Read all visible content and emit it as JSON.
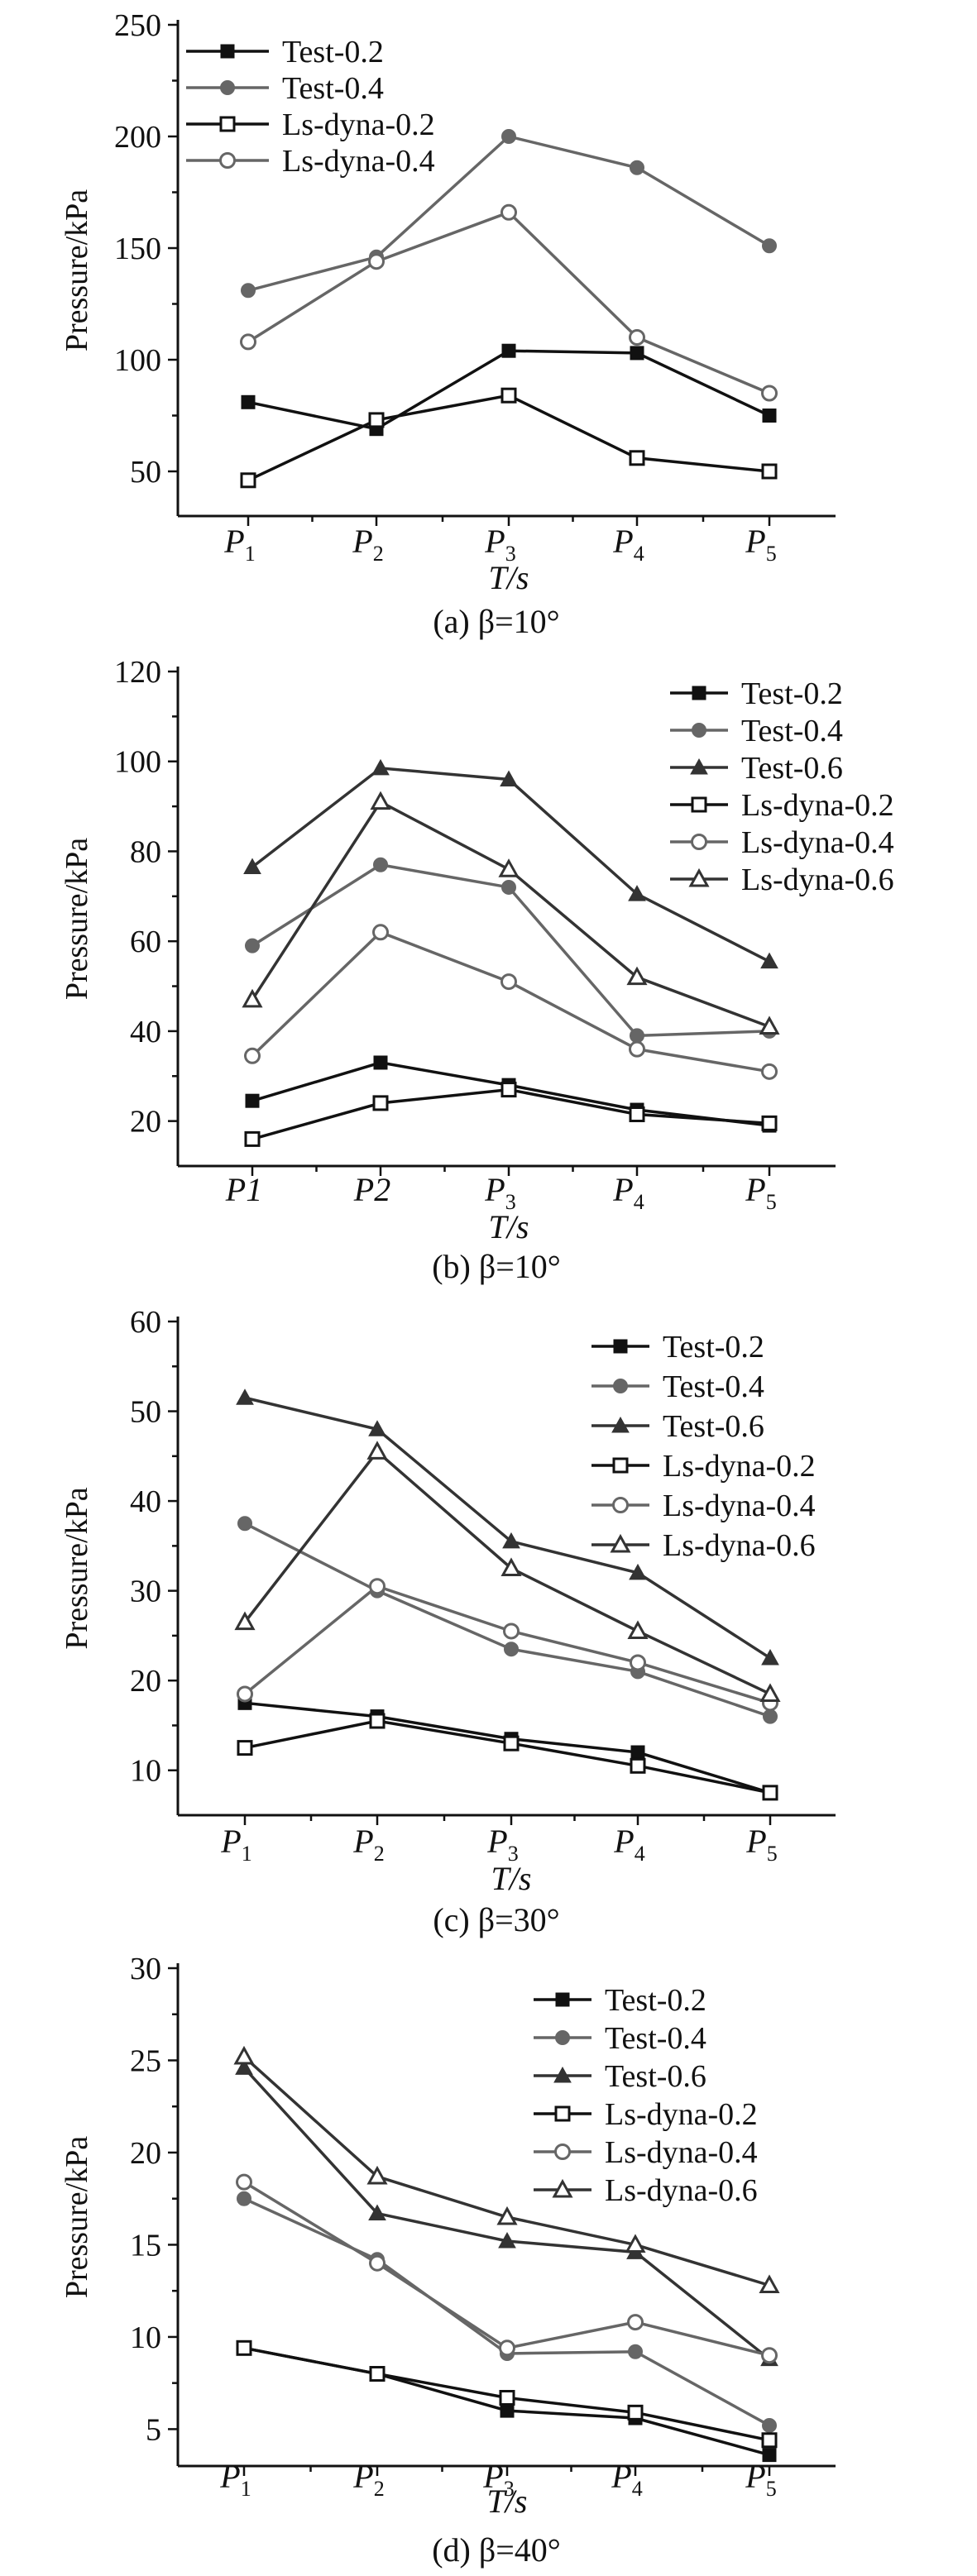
{
  "chart_data": [
    {
      "type": "line",
      "caption": "(a) β=10°",
      "xlabel": "T/s",
      "ylabel": "Pressure/kPa",
      "ylim": [
        30,
        250
      ],
      "yticks": [
        50,
        100,
        150,
        200,
        250
      ],
      "categories": [
        {
          "base": "P",
          "sub": "1"
        },
        {
          "base": "P",
          "sub": "2"
        },
        {
          "base": "P",
          "sub": "3"
        },
        {
          "base": "P",
          "sub": "4"
        },
        {
          "base": "P",
          "sub": "5"
        }
      ],
      "legend_position": "top-left",
      "series": [
        {
          "name": "Test-0.2",
          "color": "#111111",
          "marker": "square-filled",
          "values": [
            81,
            69,
            104,
            103,
            75
          ]
        },
        {
          "name": "Test-0.4",
          "color": "#666666",
          "marker": "circle-filled",
          "values": [
            131,
            146,
            200,
            186,
            151
          ]
        },
        {
          "name": "Ls-dyna-0.2",
          "color": "#111111",
          "marker": "square-open",
          "values": [
            46,
            73,
            84,
            56,
            50
          ]
        },
        {
          "name": "Ls-dyna-0.4",
          "color": "#666666",
          "marker": "circle-open",
          "values": [
            108,
            144,
            166,
            110,
            85
          ]
        }
      ]
    },
    {
      "type": "line",
      "caption": "(b) β=10°",
      "xlabel": "T/s",
      "ylabel": "Pressure/kPa",
      "ylim": [
        10,
        120
      ],
      "yticks": [
        20,
        40,
        60,
        80,
        100,
        120
      ],
      "categories": [
        {
          "base": "P1",
          "sub": ""
        },
        {
          "base": "P2",
          "sub": ""
        },
        {
          "base": "P",
          "sub": "3"
        },
        {
          "base": "P",
          "sub": "4"
        },
        {
          "base": "P",
          "sub": "5"
        }
      ],
      "legend_position": "top-right",
      "series": [
        {
          "name": "Test-0.2",
          "color": "#111111",
          "marker": "square-filled",
          "values": [
            24.5,
            33,
            28,
            22.5,
            19
          ]
        },
        {
          "name": "Test-0.4",
          "color": "#666666",
          "marker": "circle-filled",
          "values": [
            59,
            77,
            72,
            39,
            40
          ]
        },
        {
          "name": "Test-0.6",
          "color": "#333333",
          "marker": "triangle-filled",
          "values": [
            76.5,
            98.5,
            96,
            70.5,
            55.5
          ]
        },
        {
          "name": "Ls-dyna-0.2",
          "color": "#111111",
          "marker": "square-open",
          "values": [
            16,
            24,
            27,
            21.5,
            19.5
          ]
        },
        {
          "name": "Ls-dyna-0.4",
          "color": "#666666",
          "marker": "circle-open",
          "values": [
            34.5,
            62,
            51,
            36,
            31
          ]
        },
        {
          "name": "Ls-dyna-0.6",
          "color": "#333333",
          "marker": "triangle-open",
          "values": [
            47,
            91,
            76,
            52,
            41
          ]
        }
      ]
    },
    {
      "type": "line",
      "caption": "(c) β=30°",
      "xlabel": "T/s",
      "ylabel": "Pressure/kPa",
      "ylim": [
        5,
        60
      ],
      "yticks": [
        10,
        20,
        30,
        40,
        50,
        60
      ],
      "categories": [
        {
          "base": "P",
          "sub": "1"
        },
        {
          "base": "P",
          "sub": "2"
        },
        {
          "base": "P",
          "sub": "3"
        },
        {
          "base": "P",
          "sub": "4"
        },
        {
          "base": "P",
          "sub": "5"
        }
      ],
      "legend_position": "top-right",
      "series": [
        {
          "name": "Test-0.2",
          "color": "#111111",
          "marker": "square-filled",
          "values": [
            17.5,
            16,
            13.5,
            12,
            7.5
          ]
        },
        {
          "name": "Test-0.4",
          "color": "#666666",
          "marker": "circle-filled",
          "values": [
            37.5,
            30,
            23.5,
            21,
            16
          ]
        },
        {
          "name": "Test-0.6",
          "color": "#333333",
          "marker": "triangle-filled",
          "values": [
            51.5,
            48,
            35.5,
            32,
            22.5
          ]
        },
        {
          "name": "Ls-dyna-0.2",
          "color": "#111111",
          "marker": "square-open",
          "values": [
            12.5,
            15.5,
            13,
            10.5,
            7.5
          ]
        },
        {
          "name": "Ls-dyna-0.4",
          "color": "#666666",
          "marker": "circle-open",
          "values": [
            18.5,
            30.5,
            25.5,
            22,
            17.5
          ]
        },
        {
          "name": "Ls-dyna-0.6",
          "color": "#333333",
          "marker": "triangle-open",
          "values": [
            26.5,
            45.5,
            32.5,
            25.5,
            18.5
          ]
        }
      ]
    },
    {
      "type": "line",
      "caption": "(d) β=40°",
      "xlabel": "T/s",
      "ylabel": "Pressure/kPa",
      "ylim": [
        3,
        30
      ],
      "yticks": [
        5,
        10,
        15,
        20,
        25,
        30
      ],
      "categories": [
        {
          "base": "P",
          "sub": "1"
        },
        {
          "base": "P",
          "sub": "2"
        },
        {
          "base": "P",
          "sub": "3"
        },
        {
          "base": "P",
          "sub": "4"
        },
        {
          "base": "P",
          "sub": "5"
        }
      ],
      "legend_position": "top-right",
      "series": [
        {
          "name": "Test-0.2",
          "color": "#111111",
          "marker": "square-filled",
          "values": [
            9.4,
            8,
            6,
            5.6,
            3.6
          ]
        },
        {
          "name": "Test-0.4",
          "color": "#666666",
          "marker": "circle-filled",
          "values": [
            17.5,
            14.2,
            9.1,
            9.2,
            5.2
          ]
        },
        {
          "name": "Test-0.6",
          "color": "#333333",
          "marker": "triangle-filled",
          "values": [
            24.6,
            16.7,
            15.2,
            14.6,
            8.8
          ]
        },
        {
          "name": "Ls-dyna-0.2",
          "color": "#111111",
          "marker": "square-open",
          "values": [
            9.4,
            8,
            6.7,
            5.9,
            4.4
          ]
        },
        {
          "name": "Ls-dyna-0.4",
          "color": "#666666",
          "marker": "circle-open",
          "values": [
            18.4,
            14,
            9.4,
            10.8,
            9
          ]
        },
        {
          "name": "Ls-dyna-0.6",
          "color": "#333333",
          "marker": "triangle-open",
          "values": [
            25.2,
            18.7,
            16.5,
            15,
            12.8
          ]
        }
      ]
    }
  ]
}
